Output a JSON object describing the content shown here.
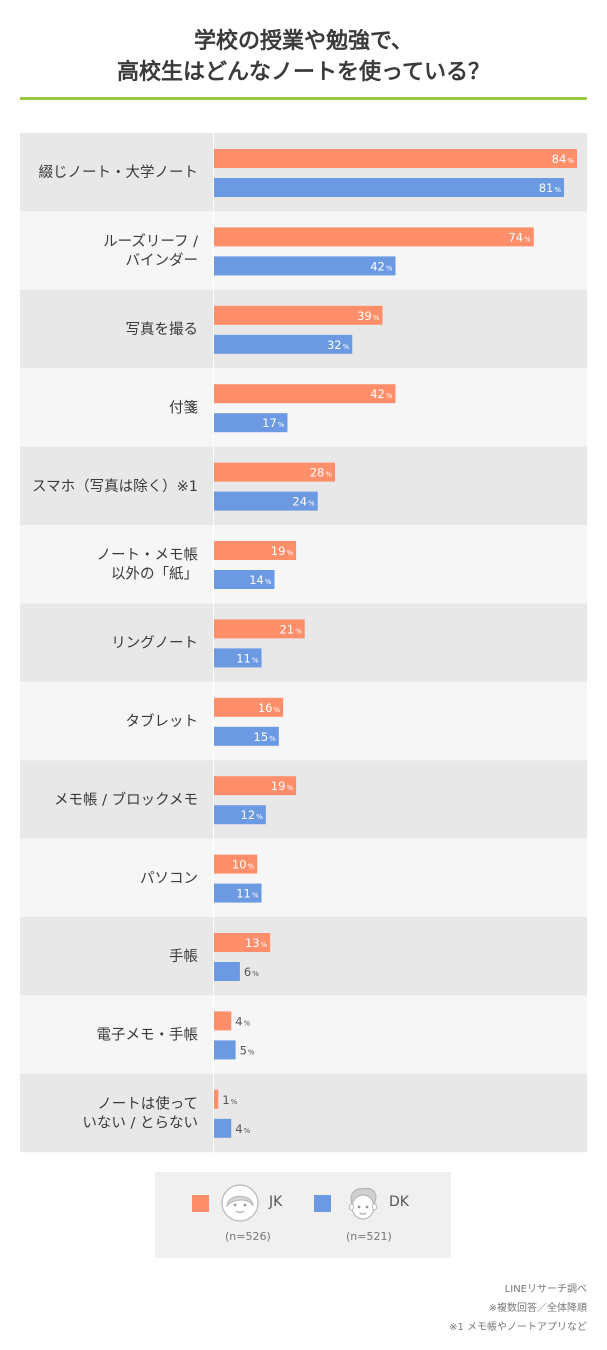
{
  "title_lines": [
    "学校の授業や勉強で、",
    "高校生はどんなノートを使っている？"
  ],
  "colors": {
    "accent_rule": "#9cc844",
    "jk": "#ff8f6b",
    "dk": "#6b9ae3",
    "row_dark": "#e8e8e8",
    "row_light": "#f6f6f6",
    "label_text": "#3a3a3a"
  },
  "chart_data": {
    "type": "bar",
    "orientation": "horizontal",
    "unit": "%",
    "xlim": [
      0,
      84
    ],
    "categories": [
      [
        "綴じノート・大学ノート"
      ],
      [
        "ルーズリーフ /",
        "バインダー"
      ],
      [
        "写真を撮る"
      ],
      [
        "付箋"
      ],
      [
        "スマホ（写真は除く）※1"
      ],
      [
        "ノート・メモ帳",
        "以外の「紙」"
      ],
      [
        "リングノート"
      ],
      [
        "タブレット"
      ],
      [
        "メモ帳 / ブロックメモ"
      ],
      [
        "パソコン"
      ],
      [
        "手帳"
      ],
      [
        "電子メモ・手帳"
      ],
      [
        "ノートは使って",
        "いない / とらない"
      ]
    ],
    "series": [
      {
        "name": "JK",
        "values": [
          84,
          74,
          39,
          42,
          28,
          19,
          21,
          16,
          19,
          10,
          13,
          4,
          1
        ]
      },
      {
        "name": "DK",
        "values": [
          81,
          42,
          32,
          17,
          24,
          14,
          11,
          15,
          12,
          11,
          6,
          5,
          4
        ]
      }
    ]
  },
  "legend": {
    "jk_label": "JK",
    "jk_n": "(n=526)",
    "dk_label": "DK",
    "dk_n": "(n=521)",
    "jk_icon": "girl-face-icon",
    "dk_icon": "boy-face-icon"
  },
  "notes": [
    "LINEリサーチ調べ",
    "※複数回答／全体降順",
    "※1 メモ帳やノートアプリなど"
  ]
}
